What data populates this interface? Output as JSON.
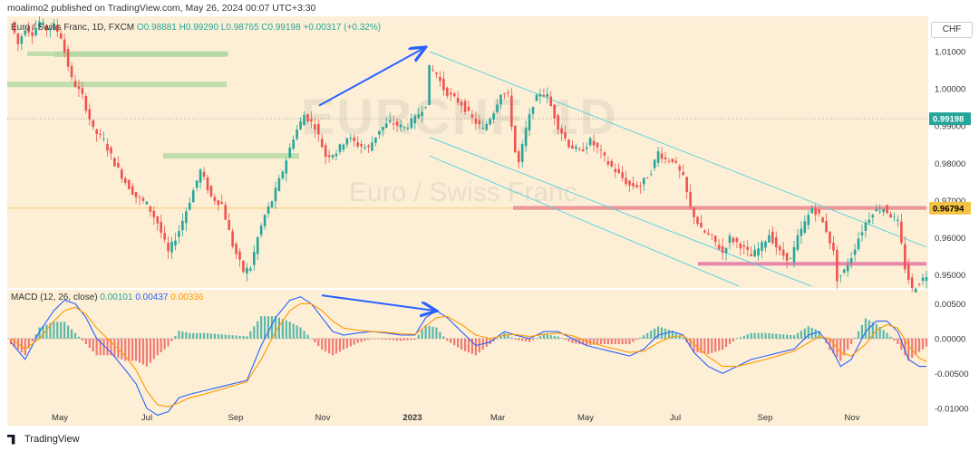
{
  "header": {
    "text": "moalimo2 published on TradingView.com, May 26, 2024 00:07 UTC+3:30"
  },
  "legend": {
    "symbol": "Euro / Swiss Franc, 1D, FXCM",
    "open": "O0.98881",
    "high": "H0.99290",
    "low": "L0.98765",
    "close": "C0.99198",
    "change": "+0.00317 (+0.32%)"
  },
  "currency_label": "CHF",
  "watermark": {
    "title": "EURCHF, 1D",
    "subtitle": "Euro / Swiss Franc"
  },
  "macd_legend": {
    "label": "MACD (12, 26, close)",
    "v1": "0.00101",
    "v2": "0.00437",
    "v3": "0.00336"
  },
  "footer": {
    "brand": "TradingView"
  },
  "colors": {
    "up": "#26a69a",
    "down": "#ef5350",
    "macd": "#2962ff",
    "signal": "#ff9800",
    "channel": "#4dd0e1",
    "arrow": "#2962ff",
    "pink_zone": "#e57aa6",
    "green_zone": "#b5d9a3"
  },
  "chart_data": [
    {
      "type": "candlestick",
      "title": "Euro / Swiss Franc, 1D, FXCM",
      "x_ticks": [
        "May",
        "Jul",
        "Sep",
        "Nov",
        "2023",
        "Mar",
        "May",
        "Jul",
        "Sep",
        "Nov"
      ],
      "y_ticks": [
        "1.01000",
        "1.00000",
        "0.99000",
        "0.98000",
        "0.97000",
        "0.96000",
        "0.95000"
      ],
      "ylim": [
        0.9465,
        1.0195
      ],
      "price_labels": [
        {
          "value": 0.99198,
          "text": "0.99198",
          "color": "#26a69a"
        },
        {
          "value": 0.96794,
          "text": "0.96794",
          "color": "#f5c242"
        }
      ],
      "series": [
        {
          "name": "close",
          "points": [
            [
              0,
              1.018
            ],
            [
              2,
              1.012
            ],
            [
              4,
              1.0165
            ],
            [
              6,
              1.015
            ],
            [
              8,
              1.018
            ],
            [
              10,
              1.016
            ],
            [
              12,
              1.017
            ],
            [
              14,
              1.014
            ],
            [
              15,
              1.01
            ],
            [
              17,
              1.0025
            ],
            [
              20,
              0.998
            ],
            [
              23,
              0.989
            ],
            [
              26,
              0.986
            ],
            [
              29,
              0.98
            ],
            [
              32,
              0.975
            ],
            [
              35,
              0.971
            ],
            [
              38,
              0.969
            ],
            [
              41,
              0.964
            ],
            [
              44,
              0.956
            ],
            [
              47,
              0.962
            ],
            [
              50,
              0.97
            ],
            [
              53,
              0.978
            ],
            [
              56,
              0.971
            ],
            [
              59,
              0.969
            ],
            [
              62,
              0.958
            ],
            [
              65,
              0.951
            ],
            [
              67,
              0.952
            ],
            [
              69,
              0.96
            ],
            [
              71,
              0.966
            ],
            [
              73,
              0.97
            ],
            [
              76,
              0.978
            ],
            [
              79,
              0.987
            ],
            [
              82,
              0.993
            ],
            [
              85,
              0.99
            ],
            [
              88,
              0.982
            ],
            [
              91,
              0.983
            ],
            [
              94,
              0.987
            ],
            [
              97,
              0.985
            ],
            [
              100,
              0.984
            ],
            [
              103,
              0.989
            ],
            [
              106,
              0.991
            ],
            [
              110,
              0.9895
            ],
            [
              113,
              0.992
            ],
            [
              116,
              0.996
            ],
            [
              117,
              1.0055
            ],
            [
              119,
              1.004
            ],
            [
              121,
              1.0
            ],
            [
              123,
              0.998
            ],
            [
              126,
              0.996
            ],
            [
              129,
              0.992
            ],
            [
              132,
              0.989
            ],
            [
              135,
              0.994
            ],
            [
              137,
              0.999
            ],
            [
              139,
              0.998
            ],
            [
              141,
              0.983
            ],
            [
              142,
              0.98
            ],
            [
              144,
              0.989
            ],
            [
              146,
              0.996
            ],
            [
              148,
              0.999
            ],
            [
              150,
              0.998
            ],
            [
              153,
              0.99
            ],
            [
              156,
              0.985
            ],
            [
              159,
              0.983
            ],
            [
              162,
              0.986
            ],
            [
              164,
              0.984
            ],
            [
              167,
              0.98
            ],
            [
              170,
              0.977
            ],
            [
              173,
              0.974
            ],
            [
              176,
              0.974
            ],
            [
              179,
              0.978
            ],
            [
              181,
              0.983
            ],
            [
              183,
              0.981
            ],
            [
              185,
              0.981
            ],
            [
              188,
              0.976
            ],
            [
              190,
              0.968
            ],
            [
              193,
              0.962
            ],
            [
              196,
              0.96
            ],
            [
              199,
              0.956
            ],
            [
              201,
              0.96
            ],
            [
              204,
              0.958
            ],
            [
              207,
              0.955
            ],
            [
              210,
              0.958
            ],
            [
              212,
              0.961
            ],
            [
              215,
              0.956
            ],
            [
              218,
              0.954
            ],
            [
              220,
              0.96
            ],
            [
              222,
              0.964
            ],
            [
              224,
              0.968
            ],
            [
              226,
              0.966
            ],
            [
              228,
              0.962
            ],
            [
              230,
              0.956
            ],
            [
              231,
              0.949
            ],
            [
              233,
              0.951
            ],
            [
              235,
              0.955
            ],
            [
              237,
              0.96
            ],
            [
              239,
              0.964
            ],
            [
              241,
              0.967
            ],
            [
              244,
              0.968
            ],
            [
              246,
              0.966
            ],
            [
              248,
              0.964
            ],
            [
              250,
              0.952
            ],
            [
              252,
              0.946
            ],
            [
              254,
              0.948
            ],
            [
              256,
              0.95
            ]
          ]
        }
      ]
    },
    {
      "type": "line",
      "title": "MACD (12, 26, close)",
      "y_ticks": [
        "0.00500",
        "0.00000",
        "-0.00500",
        "-0.01000"
      ],
      "ylim": [
        -0.0125,
        0.007
      ],
      "series": [
        {
          "name": "MACD",
          "points": [
            [
              0,
              -0.0005
            ],
            [
              4,
              -0.003
            ],
            [
              8,
              0.001
            ],
            [
              12,
              0.004
            ],
            [
              15,
              0.0055
            ],
            [
              18,
              0.005
            ],
            [
              21,
              0.003
            ],
            [
              24,
              0.0
            ],
            [
              28,
              -0.002
            ],
            [
              32,
              -0.0045
            ],
            [
              35,
              -0.0065
            ],
            [
              38,
              -0.01
            ],
            [
              41,
              -0.011
            ],
            [
              44,
              -0.0105
            ],
            [
              47,
              -0.0085
            ],
            [
              50,
              -0.008
            ],
            [
              54,
              -0.0075
            ],
            [
              58,
              -0.007
            ],
            [
              62,
              -0.0065
            ],
            [
              66,
              -0.006
            ],
            [
              70,
              -0.001
            ],
            [
              74,
              0.003
            ],
            [
              78,
              0.0055
            ],
            [
              81,
              0.006
            ],
            [
              84,
              0.005
            ],
            [
              87,
              0.003
            ],
            [
              90,
              0.001
            ],
            [
              93,
              0.0005
            ],
            [
              97,
              0.0008
            ],
            [
              101,
              0.001
            ],
            [
              105,
              0.0008
            ],
            [
              109,
              0.0005
            ],
            [
              113,
              0.0005
            ],
            [
              116,
              0.003
            ],
            [
              119,
              0.004
            ],
            [
              122,
              0.003
            ],
            [
              126,
              0.001
            ],
            [
              130,
              -0.001
            ],
            [
              134,
              -0.0005
            ],
            [
              138,
              0.001
            ],
            [
              141,
              0.0005
            ],
            [
              145,
              0.0
            ],
            [
              149,
              0.001
            ],
            [
              153,
              0.001
            ],
            [
              157,
              0.0
            ],
            [
              161,
              -0.001
            ],
            [
              165,
              -0.0015
            ],
            [
              169,
              -0.002
            ],
            [
              173,
              -0.0025
            ],
            [
              177,
              -0.0015
            ],
            [
              181,
              0.0005
            ],
            [
              185,
              0.001
            ],
            [
              188,
              0.0005
            ],
            [
              191,
              -0.002
            ],
            [
              195,
              -0.004
            ],
            [
              199,
              -0.005
            ],
            [
              203,
              -0.004
            ],
            [
              207,
              -0.003
            ],
            [
              211,
              -0.0025
            ],
            [
              215,
              -0.002
            ],
            [
              219,
              -0.0015
            ],
            [
              223,
              0.0005
            ],
            [
              226,
              0.001
            ],
            [
              229,
              -0.001
            ],
            [
              232,
              -0.004
            ],
            [
              235,
              -0.003
            ],
            [
              239,
              0.001
            ],
            [
              242,
              0.0025
            ],
            [
              245,
              0.0025
            ],
            [
              248,
              0.001
            ],
            [
              251,
              -0.003
            ],
            [
              254,
              -0.004
            ],
            [
              256,
              -0.004
            ]
          ]
        },
        {
          "name": "Signal",
          "points": [
            [
              0,
              0.0
            ],
            [
              4,
              -0.0015
            ],
            [
              8,
              0.0
            ],
            [
              12,
              0.0025
            ],
            [
              15,
              0.004
            ],
            [
              18,
              0.0045
            ],
            [
              21,
              0.0035
            ],
            [
              24,
              0.0015
            ],
            [
              28,
              -0.0005
            ],
            [
              32,
              -0.0025
            ],
            [
              35,
              -0.0045
            ],
            [
              38,
              -0.0075
            ],
            [
              41,
              -0.0095
            ],
            [
              44,
              -0.0098
            ],
            [
              47,
              -0.0092
            ],
            [
              50,
              -0.0085
            ],
            [
              54,
              -0.008
            ],
            [
              58,
              -0.0074
            ],
            [
              62,
              -0.0068
            ],
            [
              66,
              -0.0062
            ],
            [
              70,
              -0.003
            ],
            [
              74,
              0.001
            ],
            [
              78,
              0.004
            ],
            [
              81,
              0.005
            ],
            [
              84,
              0.005
            ],
            [
              87,
              0.004
            ],
            [
              90,
              0.0025
            ],
            [
              93,
              0.0015
            ],
            [
              97,
              0.0012
            ],
            [
              101,
              0.001
            ],
            [
              105,
              0.0009
            ],
            [
              109,
              0.0007
            ],
            [
              113,
              0.0006
            ],
            [
              116,
              0.0018
            ],
            [
              119,
              0.003
            ],
            [
              122,
              0.0032
            ],
            [
              126,
              0.002
            ],
            [
              130,
              0.0005
            ],
            [
              134,
              0.0
            ],
            [
              138,
              0.0005
            ],
            [
              141,
              0.0006
            ],
            [
              145,
              0.0003
            ],
            [
              149,
              0.0006
            ],
            [
              153,
              0.0008
            ],
            [
              157,
              0.0004
            ],
            [
              161,
              -0.0004
            ],
            [
              165,
              -0.001
            ],
            [
              169,
              -0.0015
            ],
            [
              173,
              -0.002
            ],
            [
              177,
              -0.0018
            ],
            [
              181,
              -0.0006
            ],
            [
              185,
              0.0003
            ],
            [
              188,
              0.0004
            ],
            [
              191,
              -0.0008
            ],
            [
              195,
              -0.0026
            ],
            [
              199,
              -0.004
            ],
            [
              203,
              -0.004
            ],
            [
              207,
              -0.0035
            ],
            [
              211,
              -0.003
            ],
            [
              215,
              -0.0024
            ],
            [
              219,
              -0.0018
            ],
            [
              223,
              -0.0006
            ],
            [
              226,
              0.0003
            ],
            [
              229,
              0.0
            ],
            [
              232,
              -0.002
            ],
            [
              235,
              -0.0025
            ],
            [
              239,
              -0.0008
            ],
            [
              242,
              0.0012
            ],
            [
              245,
              0.002
            ],
            [
              248,
              0.0015
            ],
            [
              251,
              -0.001
            ],
            [
              254,
              -0.0028
            ],
            [
              256,
              -0.0033
            ]
          ]
        }
      ]
    }
  ]
}
